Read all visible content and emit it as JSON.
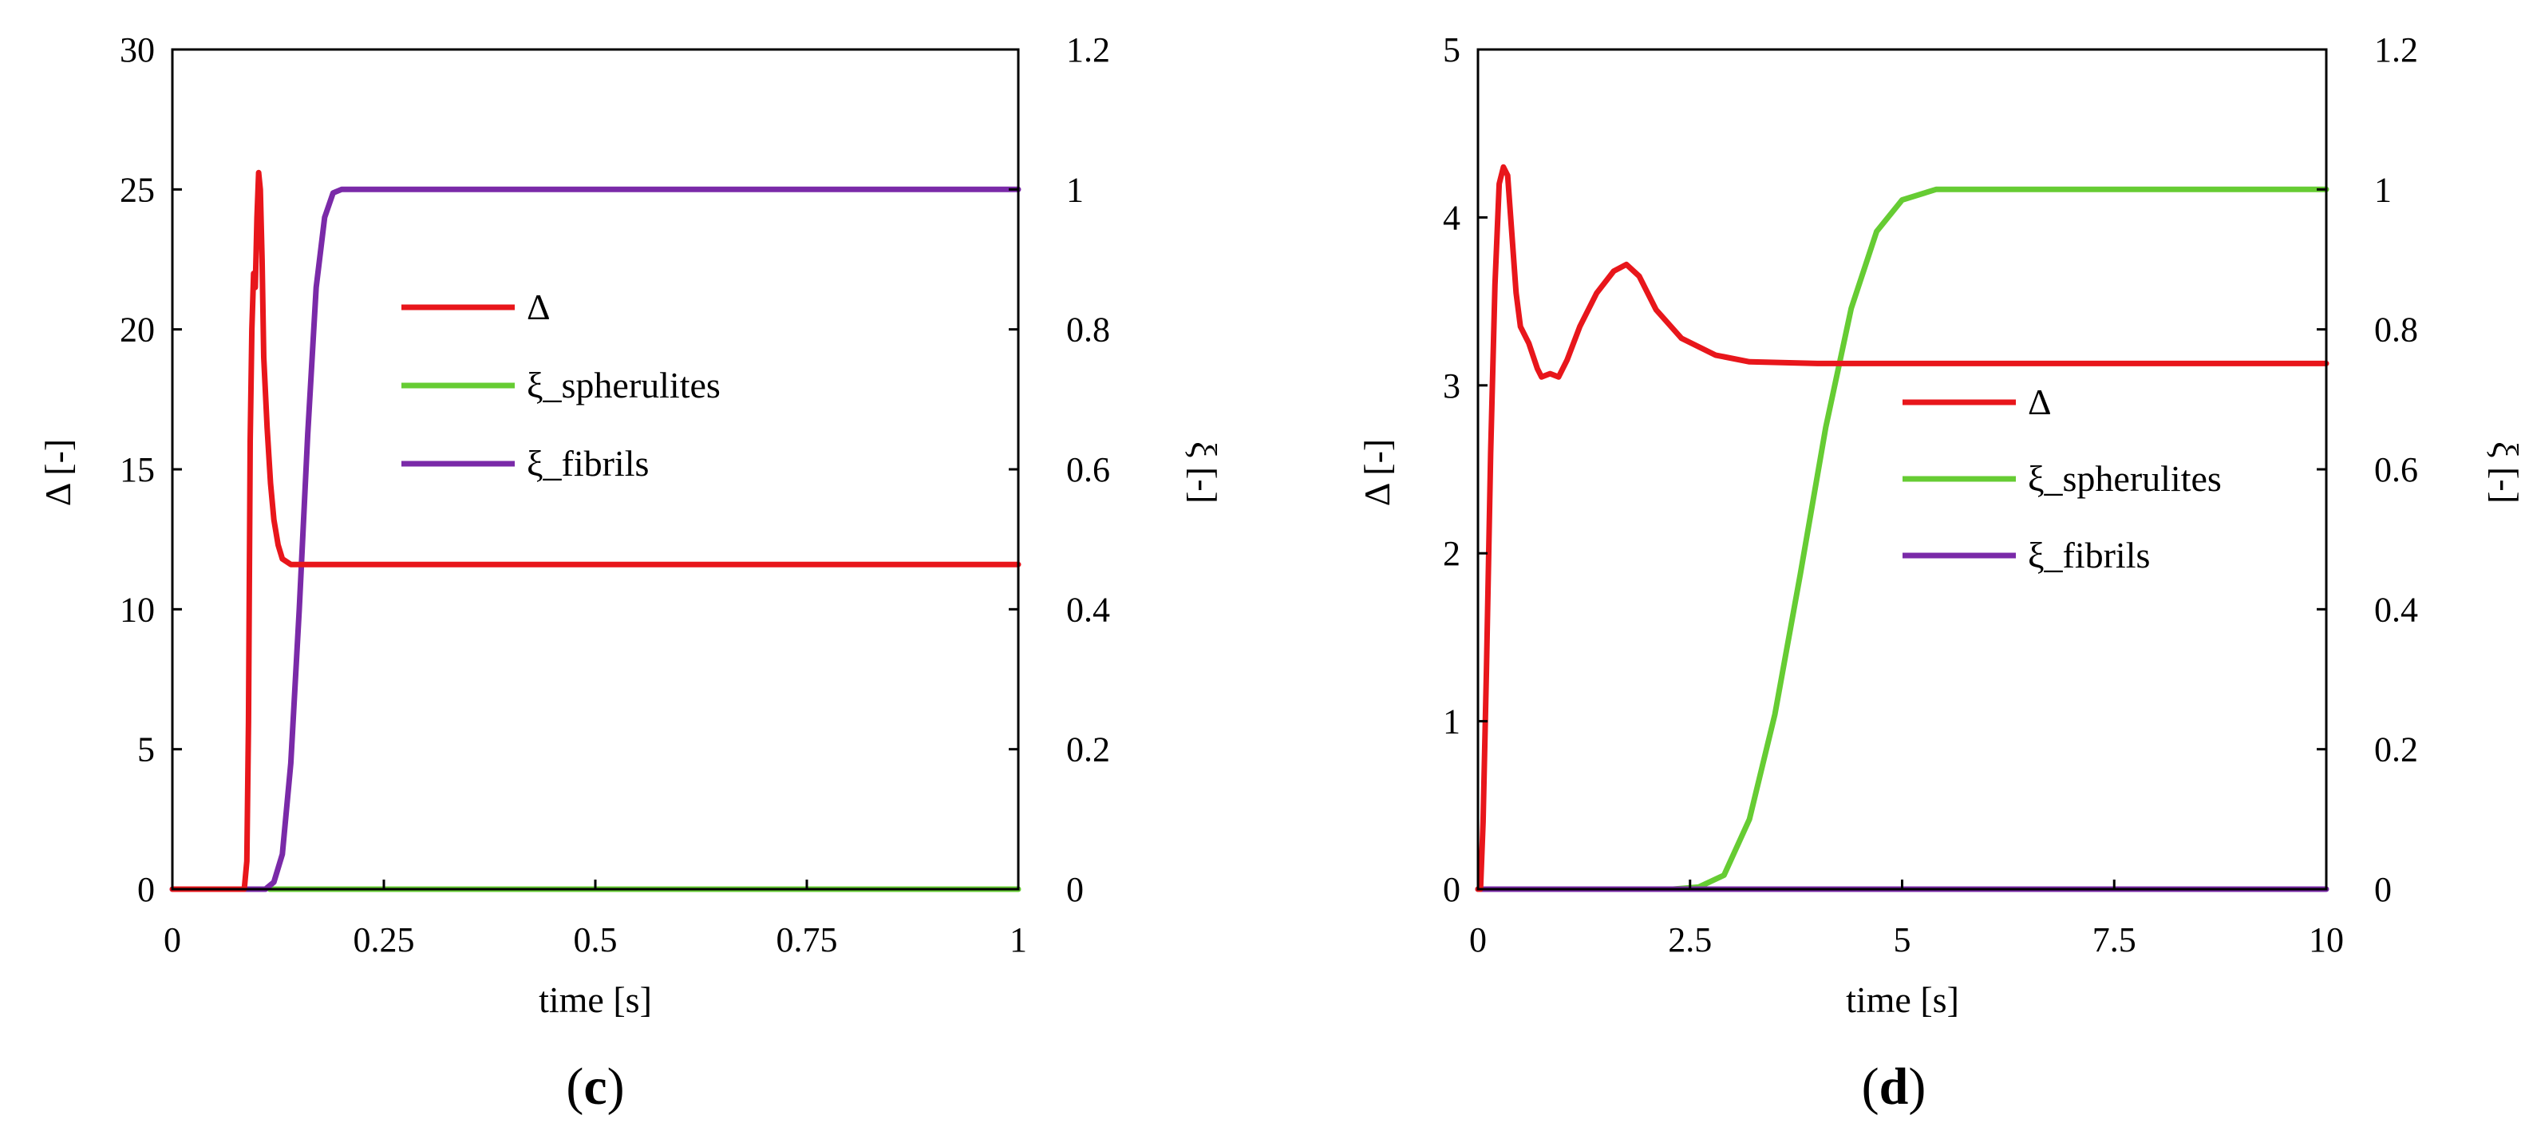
{
  "figure": {
    "panels": [
      {
        "label_open": "(",
        "label_letter": "c",
        "label_close": ")"
      },
      {
        "label_open": "(",
        "label_letter": "d",
        "label_close": ")"
      }
    ]
  },
  "colors": {
    "delta": "#e8161b",
    "spherulites": "#66cc33",
    "fibrils": "#7a2aa8",
    "axis": "#000000"
  },
  "chart_data": [
    {
      "type": "line",
      "panel": "c",
      "xlabel": "time [s]",
      "ylabel": "Δ [-]",
      "y2label": "ξ [-]",
      "xlim": [
        0,
        1
      ],
      "ylim": [
        0,
        30
      ],
      "y2lim": [
        0,
        1.2
      ],
      "xticks": [
        0,
        0.25,
        0.5,
        0.75,
        1
      ],
      "xtick_labels": [
        "0",
        "0.25",
        "0.5",
        "0.75",
        "1"
      ],
      "yticks": [
        0,
        5,
        10,
        15,
        20,
        25,
        30
      ],
      "ytick_labels": [
        "0",
        "5",
        "10",
        "15",
        "20",
        "25",
        "30"
      ],
      "y2ticks": [
        0,
        0.2,
        0.4,
        0.6,
        0.8,
        1,
        1.2
      ],
      "y2tick_labels": [
        "0",
        "0.2",
        "0.4",
        "0.6",
        "0.8",
        "1",
        "1.2"
      ],
      "legend_position": "center",
      "grid": false,
      "series": [
        {
          "name": "Δ",
          "axis": "left",
          "color_key": "delta",
          "points": [
            [
              0,
              0
            ],
            [
              0.085,
              0
            ],
            [
              0.088,
              1
            ],
            [
              0.09,
              6
            ],
            [
              0.092,
              16
            ],
            [
              0.094,
              20
            ],
            [
              0.096,
              22
            ],
            [
              0.098,
              21.5
            ],
            [
              0.1,
              24
            ],
            [
              0.102,
              25.6
            ],
            [
              0.104,
              25
            ],
            [
              0.106,
              22.5
            ],
            [
              0.108,
              19
            ],
            [
              0.112,
              16.5
            ],
            [
              0.116,
              14.5
            ],
            [
              0.12,
              13.2
            ],
            [
              0.125,
              12.3
            ],
            [
              0.13,
              11.8
            ],
            [
              0.14,
              11.6
            ],
            [
              0.16,
              11.6
            ],
            [
              0.2,
              11.6
            ],
            [
              0.5,
              11.6
            ],
            [
              1,
              11.6
            ]
          ]
        },
        {
          "name": "ξ_spherulites",
          "axis": "right",
          "color_key": "spherulites",
          "points": [
            [
              0.115,
              0
            ],
            [
              0.5,
              0
            ],
            [
              1,
              0
            ]
          ]
        },
        {
          "name": "ξ_fibrils",
          "axis": "right",
          "color_key": "fibrils",
          "points": [
            [
              0,
              0
            ],
            [
              0.11,
              0
            ],
            [
              0.12,
              0.01
            ],
            [
              0.13,
              0.05
            ],
            [
              0.14,
              0.18
            ],
            [
              0.15,
              0.4
            ],
            [
              0.16,
              0.65
            ],
            [
              0.17,
              0.86
            ],
            [
              0.18,
              0.96
            ],
            [
              0.19,
              0.995
            ],
            [
              0.2,
              1
            ],
            [
              0.5,
              1
            ],
            [
              1,
              1
            ]
          ]
        }
      ]
    },
    {
      "type": "line",
      "panel": "d",
      "xlabel": "time [s]",
      "ylabel": "Δ [-]",
      "y2label": "ξ [-]",
      "xlim": [
        0,
        10
      ],
      "ylim": [
        0,
        5
      ],
      "y2lim": [
        0,
        1.2
      ],
      "xticks": [
        0,
        2.5,
        5,
        7.5,
        10
      ],
      "xtick_labels": [
        "0",
        "2.5",
        "5",
        "7.5",
        "10"
      ],
      "yticks": [
        0,
        1,
        2,
        3,
        4,
        5
      ],
      "ytick_labels": [
        "0",
        "1",
        "2",
        "3",
        "4",
        "5"
      ],
      "y2ticks": [
        0,
        0.2,
        0.4,
        0.6,
        0.8,
        1,
        1.2
      ],
      "y2tick_labels": [
        "0",
        "0.2",
        "0.4",
        "0.6",
        "0.8",
        "1",
        "1.2"
      ],
      "legend_position": "center-right",
      "grid": false,
      "series": [
        {
          "name": "Δ",
          "axis": "left",
          "color_key": "delta",
          "points": [
            [
              0,
              0
            ],
            [
              0.03,
              0
            ],
            [
              0.06,
              0.4
            ],
            [
              0.1,
              1.3
            ],
            [
              0.15,
              2.6
            ],
            [
              0.2,
              3.6
            ],
            [
              0.25,
              4.2
            ],
            [
              0.3,
              4.3
            ],
            [
              0.35,
              4.25
            ],
            [
              0.4,
              3.9
            ],
            [
              0.45,
              3.55
            ],
            [
              0.5,
              3.35
            ],
            [
              0.6,
              3.25
            ],
            [
              0.7,
              3.1
            ],
            [
              0.75,
              3.05
            ],
            [
              0.85,
              3.07
            ],
            [
              0.95,
              3.05
            ],
            [
              1.05,
              3.15
            ],
            [
              1.2,
              3.35
            ],
            [
              1.4,
              3.55
            ],
            [
              1.6,
              3.68
            ],
            [
              1.75,
              3.72
            ],
            [
              1.9,
              3.65
            ],
            [
              2.1,
              3.45
            ],
            [
              2.4,
              3.28
            ],
            [
              2.8,
              3.18
            ],
            [
              3.2,
              3.14
            ],
            [
              4,
              3.13
            ],
            [
              6,
              3.13
            ],
            [
              10,
              3.13
            ]
          ]
        },
        {
          "name": "ξ_spherulites",
          "axis": "right",
          "color_key": "spherulites",
          "points": [
            [
              0,
              0
            ],
            [
              2.3,
              0
            ],
            [
              2.6,
              0.003
            ],
            [
              2.9,
              0.02
            ],
            [
              3.2,
              0.1
            ],
            [
              3.5,
              0.25
            ],
            [
              3.8,
              0.45
            ],
            [
              4.1,
              0.66
            ],
            [
              4.4,
              0.83
            ],
            [
              4.7,
              0.94
            ],
            [
              5,
              0.985
            ],
            [
              5.4,
              1
            ],
            [
              6,
              1
            ],
            [
              10,
              1
            ]
          ]
        },
        {
          "name": "ξ_fibrils",
          "axis": "right",
          "color_key": "fibrils",
          "points": [
            [
              0,
              0
            ],
            [
              5,
              0
            ],
            [
              10,
              0
            ]
          ]
        }
      ]
    }
  ]
}
